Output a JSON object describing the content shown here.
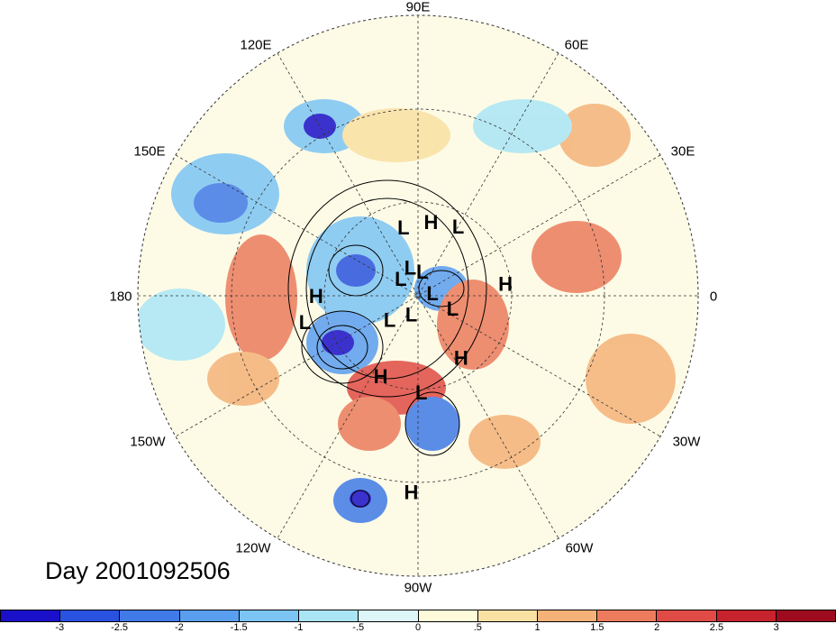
{
  "map": {
    "date_label": "Day 2001092506",
    "longitude_labels": [
      "90E",
      "60E",
      "30E",
      "0",
      "30W",
      "60W",
      "90W",
      "120W",
      "150W",
      "180",
      "150E",
      "120E"
    ],
    "pressure_centers": [
      {
        "label": "L",
        "lat": 62,
        "lon": 102
      },
      {
        "label": "H",
        "lat": 60,
        "lon": 80
      },
      {
        "label": "L",
        "lat": 58,
        "lon": 60
      },
      {
        "label": "L",
        "lat": 78,
        "lon": 105
      },
      {
        "label": "L",
        "lat": 80,
        "lon": 80
      },
      {
        "label": "L",
        "lat": 84,
        "lon": 10
      },
      {
        "label": "H",
        "lat": 55,
        "lon": 8
      },
      {
        "label": "L",
        "lat": 80,
        "lon": 135
      },
      {
        "label": "H",
        "lat": 50,
        "lon": 180
      },
      {
        "label": "L",
        "lat": 82,
        "lon": -110
      },
      {
        "label": "L",
        "lat": 75,
        "lon": -140
      },
      {
        "label": "L",
        "lat": 45,
        "lon": -167
      },
      {
        "label": "L",
        "lat": 75,
        "lon": -20
      },
      {
        "label": "H",
        "lat": 55,
        "lon": -115
      },
      {
        "label": "L",
        "lat": 52,
        "lon": -88
      },
      {
        "label": "H",
        "lat": 60,
        "lon": -55
      },
      {
        "label": "H",
        "lat": 20,
        "lon": -92
      }
    ]
  },
  "colorbar": {
    "ticks": [
      "-3",
      "-2.5",
      "-2",
      "-1.5",
      "-1",
      "-.5",
      "0",
      ".5",
      "1",
      "1.5",
      "2",
      "2.5",
      "3"
    ],
    "colors": [
      "#1a10c9",
      "#2a52e0",
      "#3f7ae8",
      "#5a9ef0",
      "#7cc4f4",
      "#aae5f6",
      "#dcf6f9",
      "#fdfbd9",
      "#f9e0a3",
      "#f4b278",
      "#ec7c5d",
      "#e04c45",
      "#c7232c",
      "#9e0b1f"
    ]
  }
}
